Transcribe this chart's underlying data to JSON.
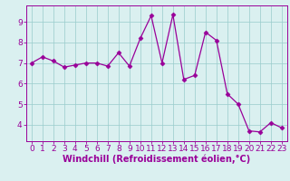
{
  "x": [
    0,
    1,
    2,
    3,
    4,
    5,
    6,
    7,
    8,
    9,
    10,
    11,
    12,
    13,
    14,
    15,
    16,
    17,
    18,
    19,
    20,
    21,
    22,
    23
  ],
  "y": [
    7.0,
    7.3,
    7.1,
    6.8,
    6.9,
    7.0,
    7.0,
    6.85,
    7.5,
    6.85,
    8.2,
    9.3,
    7.0,
    9.35,
    6.2,
    6.4,
    8.5,
    8.1,
    5.5,
    5.0,
    3.7,
    3.65,
    4.1,
    3.85
  ],
  "line_color": "#990099",
  "marker": "D",
  "marker_size": 2.5,
  "bg_color": "#daf0f0",
  "grid_color": "#99cccc",
  "xlabel": "Windchill (Refroidissement éolien,°C)",
  "ylabel": "",
  "ylim": [
    3.2,
    9.8
  ],
  "xlim": [
    -0.5,
    23.5
  ],
  "yticks": [
    4,
    5,
    6,
    7,
    8,
    9
  ],
  "xticks": [
    0,
    1,
    2,
    3,
    4,
    5,
    6,
    7,
    8,
    9,
    10,
    11,
    12,
    13,
    14,
    15,
    16,
    17,
    18,
    19,
    20,
    21,
    22,
    23
  ],
  "tick_color": "#990099",
  "label_color": "#990099",
  "axis_color": "#990099",
  "font_size_xlabel": 7,
  "font_size_ticks": 6.5
}
